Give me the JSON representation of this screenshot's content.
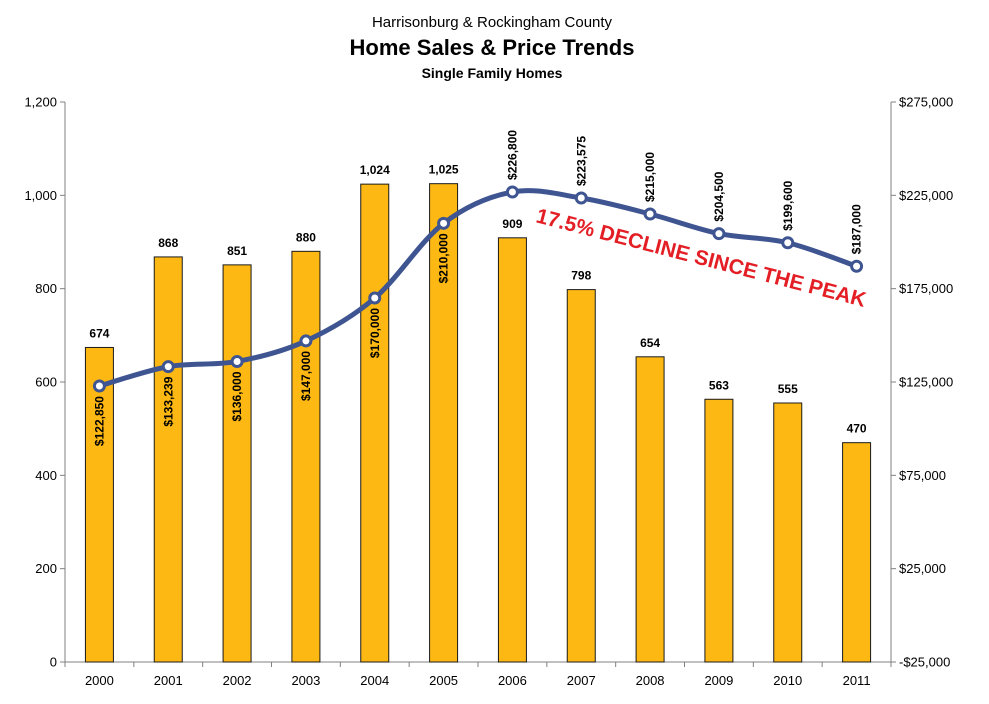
{
  "colors": {
    "bar_fill": "#fdb813",
    "bar_stroke": "#1a1a1a",
    "line": "#3f5591",
    "marker_fill": "#ffffff",
    "annotation": "#e31e24",
    "axis": "#808080"
  },
  "chart_data": {
    "type": "bar",
    "title": "Home Sales & Price Trends",
    "supertitle": "Harrisonburg & Rockingham County",
    "subtitle": "Single Family Homes",
    "categories": [
      "2000",
      "2001",
      "2002",
      "2003",
      "2004",
      "2005",
      "2006",
      "2007",
      "2008",
      "2009",
      "2010",
      "2011"
    ],
    "y_left": {
      "ylim": [
        0,
        1200
      ],
      "ticks": [
        0,
        200,
        400,
        600,
        800,
        1000,
        1200
      ],
      "tick_labels": [
        "0",
        "200",
        "400",
        "600",
        "800",
        "1,000",
        "1,200"
      ]
    },
    "y_right": {
      "ylim": [
        -25000,
        275000
      ],
      "ticks": [
        -25000,
        25000,
        75000,
        125000,
        175000,
        225000,
        275000
      ],
      "tick_labels": [
        "-$25,000",
        "$25,000",
        "$75,000",
        "$125,000",
        "$175,000",
        "$225,000",
        "$275,000"
      ]
    },
    "grid": false,
    "legend": "none",
    "series": [
      {
        "type": "bar",
        "axis": "left",
        "values": [
          674,
          868,
          851,
          880,
          1024,
          1025,
          909,
          798,
          654,
          563,
          555,
          470
        ],
        "labels": [
          "674",
          "868",
          "851",
          "880",
          "1,024",
          "1,025",
          "909",
          "798",
          "654",
          "563",
          "555",
          "470"
        ]
      },
      {
        "type": "line",
        "axis": "right",
        "smooth": true,
        "values": [
          122850,
          133239,
          136000,
          147000,
          170000,
          210000,
          226800,
          223575,
          215000,
          204500,
          199600,
          187000
        ],
        "labels": [
          "$122,850",
          "$133,239",
          "$136,000",
          "$147,000",
          "$170,000",
          "$210,000",
          "$226,800",
          "$223,575",
          "$215,000",
          "$204,500",
          "$199,600",
          "$187,000"
        ]
      }
    ],
    "annotations": [
      {
        "text": "17.5% DECLINE SINCE THE PEAK",
        "color": "#e31e24"
      }
    ]
  }
}
